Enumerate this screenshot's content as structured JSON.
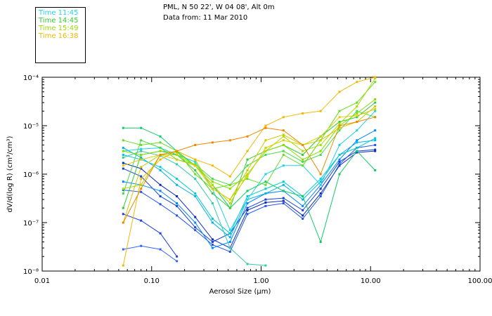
{
  "header": {
    "location": "PML, N 50 22', W 04 08', Alt 0m",
    "data_from": "Data from: 11 Mar 2010"
  },
  "legend": {
    "items": [
      {
        "label": "Time 11:45",
        "color": "#22d3e6"
      },
      {
        "label": "Time 14:45",
        "color": "#33cc33"
      },
      {
        "label": "Time 15:49",
        "color": "#99dd00"
      },
      {
        "label": "Time 16:38",
        "color": "#f2b800"
      }
    ]
  },
  "chart_data": {
    "type": "line",
    "title": "PML, N 50 22', W 04 08', Alt 0m",
    "subtitle": "Data from: 11 Mar 2010",
    "xlabel": "Aerosol Size (µm)",
    "ylabel": "dV/d(log R) (cm³/cm³)",
    "xscale": "log",
    "yscale": "log",
    "xlim": [
      0.01,
      100
    ],
    "ylim": [
      1e-08,
      0.0001
    ],
    "grid": false,
    "legend_position": "top-left",
    "x_ticks": [
      {
        "value": 0.01,
        "label": "0.01"
      },
      {
        "value": 0.1,
        "label": "0.10"
      },
      {
        "value": 1,
        "label": "1.00"
      },
      {
        "value": 10,
        "label": "10.00"
      },
      {
        "value": 100,
        "label": "100.00"
      }
    ],
    "y_ticks": [
      {
        "value": 1e-08,
        "label": "10⁻⁸"
      },
      {
        "value": 1e-07,
        "label": "10⁻⁷"
      },
      {
        "value": 1e-06,
        "label": "10⁻⁶"
      },
      {
        "value": 1e-05,
        "label": "10⁻⁵"
      },
      {
        "value": 0.0001,
        "label": "10⁻⁴"
      }
    ],
    "x": [
      0.055,
      0.08,
      0.12,
      0.17,
      0.25,
      0.36,
      0.52,
      0.75,
      1.1,
      1.6,
      2.4,
      3.5,
      5.2,
      7.5,
      11.0
    ],
    "series": [
      {
        "name": "s1",
        "color": "#1f3fe0",
        "values": [
          1.5e-07,
          1.1e-07,
          6e-08,
          2e-08,
          null,
          null,
          null,
          null,
          null,
          null,
          null,
          null,
          null,
          null,
          null
        ]
      },
      {
        "name": "s2",
        "color": "#3366ff",
        "values": [
          2.8e-08,
          3.3e-08,
          2.8e-08,
          1.6e-08,
          null,
          null,
          null,
          null,
          null,
          null,
          null,
          null,
          null,
          null,
          null
        ]
      },
      {
        "name": "s3",
        "color": "#1840d0",
        "values": [
          1.3e-06,
          9e-07,
          3.5e-07,
          2.2e-07,
          8e-08,
          4e-08,
          6e-08,
          2e-07,
          3e-07,
          3.2e-07,
          1.8e-07,
          5e-07,
          1.8e-06,
          3e-06,
          3.2e-06
        ]
      },
      {
        "name": "s4",
        "color": "#0a2ab8",
        "values": [
          1.7e-06,
          1.3e-06,
          6e-07,
          3.5e-07,
          1.3e-07,
          4.5e-08,
          3e-08,
          1.8e-07,
          2.6e-07,
          2.8e-07,
          1.4e-07,
          4e-07,
          1.5e-06,
          2.8e-06,
          3e-06
        ]
      },
      {
        "name": "s5",
        "color": "#2255ee",
        "values": [
          4.7e-07,
          4.3e-07,
          2.4e-07,
          1.4e-07,
          7e-08,
          3.5e-08,
          2.5e-08,
          1.5e-07,
          2.2e-07,
          2.5e-07,
          1.2e-07,
          3.5e-07,
          1.6e-06,
          3.5e-06,
          4e-06
        ]
      },
      {
        "name": "s6",
        "color": "#0088ff",
        "values": [
          7e-07,
          6e-07,
          4.5e-07,
          2.5e-07,
          1e-07,
          3e-08,
          4e-08,
          2.5e-07,
          4e-07,
          4.5e-07,
          2.2e-07,
          6e-07,
          2e-06,
          5e-06,
          8e-06
        ]
      },
      {
        "name": "s7",
        "color": "#00b4f0",
        "values": [
          3.5e-06,
          2.2e-06,
          1.2e-06,
          6e-07,
          3.5e-07,
          1e-07,
          5e-08,
          3e-07,
          4e-07,
          6e-07,
          3e-07,
          7e-07,
          2.5e-06,
          4.5e-06,
          5e-06
        ]
      },
      {
        "name": "s8",
        "color": "#00cccc",
        "values": [
          2.5e-06,
          2e-06,
          1.4e-06,
          8e-07,
          4e-07,
          1.2e-07,
          6e-08,
          3.5e-07,
          5e-07,
          7e-07,
          3.5e-07,
          8e-07,
          2.5e-06,
          3.5e-06,
          5.5e-06
        ]
      },
      {
        "name": "s9",
        "color": "#22d3e6",
        "values": [
          3e-06,
          3.3e-06,
          3.5e-06,
          2.5e-06,
          1.8e-06,
          5e-07,
          7e-08,
          3e-07,
          1e-06,
          1.5e-06,
          1.5e-06,
          6e-07,
          4e-06,
          8e-06,
          2e-05
        ]
      },
      {
        "name": "s10",
        "color": "#33ccaa",
        "values": [
          2.2e-06,
          3e-06,
          2.4e-06,
          1.6e-06,
          8e-07,
          2.5e-07,
          3e-08,
          1.4e-08,
          1.3e-08,
          null,
          null,
          null,
          null,
          null,
          null
        ]
      },
      {
        "name": "s11",
        "color": "#11cc66",
        "values": [
          9e-06,
          9e-06,
          6e-06,
          3e-06,
          1.5e-06,
          6e-07,
          2e-07,
          4.5e-07,
          7e-07,
          4.5e-07,
          3.5e-07,
          4e-08,
          1e-06,
          3e-06,
          1.2e-06
        ]
      },
      {
        "name": "s12",
        "color": "#33cc33",
        "values": [
          2e-07,
          2.5e-06,
          3e-06,
          2.5e-06,
          1.2e-06,
          4e-07,
          2e-07,
          2e-06,
          3e-06,
          4e-06,
          2.5e-06,
          6e-06,
          1.2e-05,
          1.5e-05,
          3e-05
        ]
      },
      {
        "name": "s13",
        "color": "#44dd44",
        "values": [
          4e-07,
          5e-06,
          3.5e-06,
          2e-06,
          1.6e-06,
          8e-07,
          6e-07,
          1.5e-06,
          2.5e-06,
          3e-06,
          1.8e-06,
          2.5e-06,
          8e-06,
          2e-05,
          1.5e-05
        ]
      },
      {
        "name": "s14",
        "color": "#66dd22",
        "values": [
          5e-06,
          4e-06,
          4.5e-06,
          3e-06,
          1e-06,
          5e-07,
          6e-07,
          8e-07,
          6e-07,
          2.5e-06,
          1.5e-06,
          5e-06,
          2e-05,
          3e-05,
          8e-05
        ]
      },
      {
        "name": "s15",
        "color": "#88dd00",
        "values": [
          3e-06,
          2.5e-06,
          3e-06,
          2.8e-06,
          1.5e-06,
          7e-07,
          5e-07,
          1e-06,
          3e-06,
          4e-06,
          2e-06,
          3e-06,
          1e-05,
          1.8e-05,
          3.5e-05
        ]
      },
      {
        "name": "s16",
        "color": "#aadd00",
        "values": [
          5e-07,
          6e-07,
          2.5e-06,
          2.5e-06,
          1.5e-06,
          6e-07,
          2.5e-07,
          1e-06,
          3e-06,
          6e-06,
          3e-06,
          4e-06,
          1.1e-05,
          2.5e-05,
          9.5e-05
        ]
      },
      {
        "name": "s17",
        "color": "#cccc00",
        "values": [
          1e-07,
          1.4e-06,
          2.5e-06,
          3e-06,
          2e-06,
          5e-07,
          3e-07,
          1.2e-06,
          5e-06,
          6.5e-06,
          4e-06,
          5e-06,
          9e-06,
          1.2e-05,
          2.5e-05
        ]
      },
      {
        "name": "s18",
        "color": "#ddcc00",
        "values": [
          1.5e-06,
          2e-06,
          2.5e-06,
          2e-06,
          1.5e-06,
          5e-07,
          3e-07,
          9e-07,
          3.5e-06,
          5e-06,
          4e-06,
          6e-06,
          1.5e-05,
          1.6e-05,
          2.2e-05
        ]
      },
      {
        "name": "s19",
        "color": "#f2b800",
        "values": [
          1.3e-08,
          8e-07,
          2e-06,
          3e-06,
          2e-06,
          1.5e-06,
          9e-07,
          3e-06,
          1e-05,
          1.5e-05,
          1.8e-05,
          2e-05,
          5e-05,
          8e-05,
          0.0001
        ]
      },
      {
        "name": "s20",
        "color": "#ee8800",
        "values": [
          1e-07,
          5e-07,
          2.5e-06,
          3e-06,
          4e-06,
          4.5e-06,
          5e-06,
          6e-06,
          9e-06,
          8e-06,
          4e-06,
          1e-06,
          1e-05,
          1.2e-05,
          1.5e-05
        ]
      }
    ]
  }
}
